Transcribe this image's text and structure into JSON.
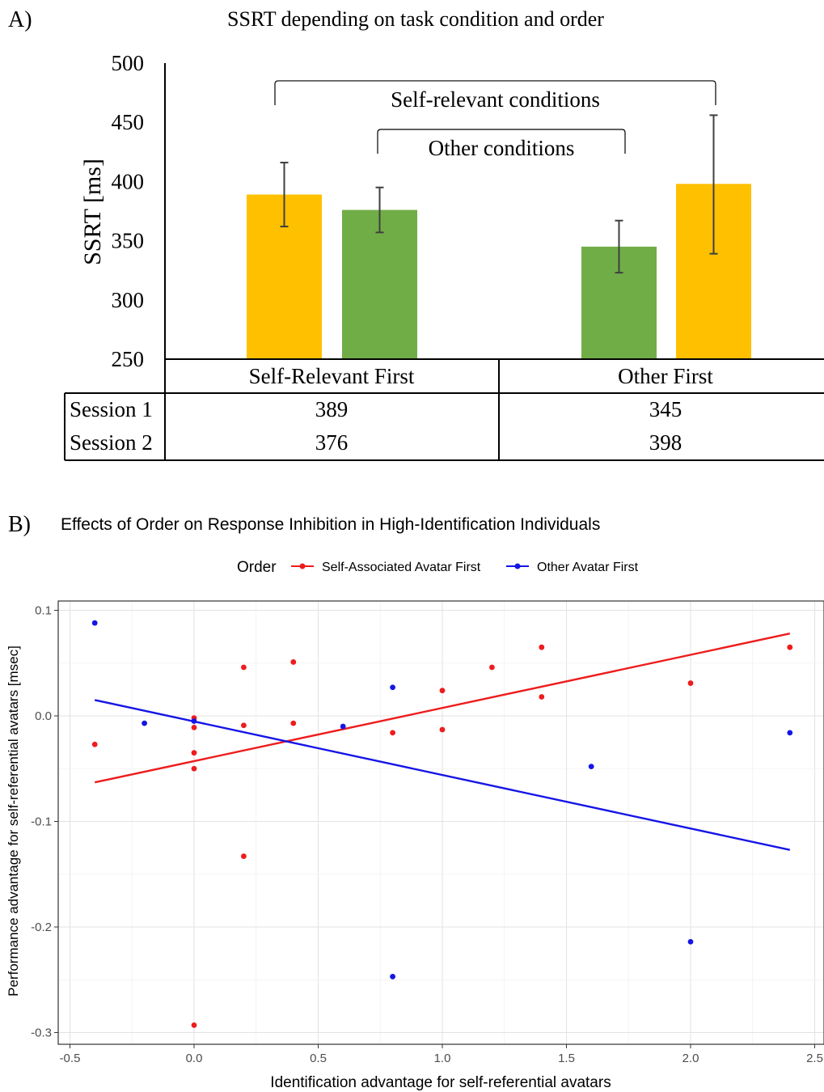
{
  "chart_data": [
    {
      "panel_label": "A)",
      "type": "bar",
      "title": "SSRT depending on task condition and order",
      "ylabel": "SSRT [ms]",
      "ylim": [
        250,
        500
      ],
      "yticks": [
        250,
        300,
        350,
        400,
        450,
        500
      ],
      "group_labels": [
        "Self-Relevant First",
        "Other First"
      ],
      "bars": [
        {
          "group": 0,
          "condition": "self",
          "value": 389,
          "err_low": 362,
          "err_high": 416
        },
        {
          "group": 0,
          "condition": "other",
          "value": 376,
          "err_low": 357,
          "err_high": 395
        },
        {
          "group": 1,
          "condition": "other",
          "value": 345,
          "err_low": 323,
          "err_high": 367
        },
        {
          "group": 1,
          "condition": "self",
          "value": 398,
          "err_low": 339,
          "err_high": 456
        }
      ],
      "brackets": [
        {
          "label": "Self-relevant  conditions",
          "from_bar": 0,
          "to_bar": 3,
          "y": 485
        },
        {
          "label": "Other conditions",
          "from_bar": 1,
          "to_bar": 2,
          "y": 444
        }
      ],
      "colors": {
        "self": "#ffc000",
        "other": "#70ad47",
        "error": "#3f3f3f"
      },
      "table": {
        "rows": [
          {
            "label": "Session 1",
            "values": [
              "389",
              "345"
            ]
          },
          {
            "label": "Session 2",
            "values": [
              "376",
              "398"
            ]
          }
        ]
      }
    },
    {
      "panel_label": "B)",
      "type": "scatter",
      "title": "Effects of Order on Response Inhibition in High-Identification Individuals",
      "xlabel": "Identification advantage for self-referential avatars",
      "ylabel": "Performance advantage for self-referential avatars [msec]",
      "xlim": [
        -0.5,
        2.5
      ],
      "ylim": [
        -0.3,
        0.1
      ],
      "xticks": [
        -0.5,
        0.0,
        0.5,
        1.0,
        1.5,
        2.0,
        2.5
      ],
      "xtick_labels": [
        "-0.5",
        "0.0",
        "0.5",
        "1.0",
        "1.5",
        "2.0",
        "2.5"
      ],
      "yticks": [
        -0.3,
        -0.2,
        -0.1,
        0.0,
        0.1
      ],
      "ytick_labels": [
        "-0.3",
        "-0.2",
        "-0.1",
        "0.0",
        "0.1"
      ],
      "grid": true,
      "legend": {
        "title": "Order",
        "placement": "top"
      },
      "series": [
        {
          "name": "Self-Associated Avatar First",
          "color": "#ee1c1c",
          "points": [
            [
              -0.4,
              -0.027
            ],
            [
              0.0,
              -0.002
            ],
            [
              0.0,
              -0.011
            ],
            [
              0.0,
              -0.035
            ],
            [
              0.0,
              -0.05
            ],
            [
              0.0,
              -0.293
            ],
            [
              0.2,
              0.046
            ],
            [
              0.2,
              -0.009
            ],
            [
              0.2,
              -0.133
            ],
            [
              0.4,
              0.051
            ],
            [
              0.4,
              -0.007
            ],
            [
              0.8,
              -0.016
            ],
            [
              1.0,
              0.024
            ],
            [
              1.0,
              -0.013
            ],
            [
              1.2,
              0.046
            ],
            [
              1.4,
              0.065
            ],
            [
              1.4,
              0.018
            ],
            [
              2.0,
              0.031
            ],
            [
              2.4,
              0.065
            ]
          ],
          "fit": [
            [
              -0.4,
              -0.063
            ],
            [
              2.4,
              0.078
            ]
          ]
        },
        {
          "name": "Other Avatar First",
          "color": "#1515e6",
          "points": [
            [
              -0.4,
              0.088
            ],
            [
              -0.2,
              -0.007
            ],
            [
              0.0,
              -0.005
            ],
            [
              0.6,
              -0.01
            ],
            [
              0.8,
              0.027
            ],
            [
              0.8,
              -0.247
            ],
            [
              1.6,
              -0.048
            ],
            [
              2.0,
              -0.214
            ],
            [
              2.4,
              -0.016
            ]
          ],
          "fit": [
            [
              -0.4,
              0.015
            ],
            [
              2.4,
              -0.127
            ]
          ]
        }
      ]
    }
  ]
}
